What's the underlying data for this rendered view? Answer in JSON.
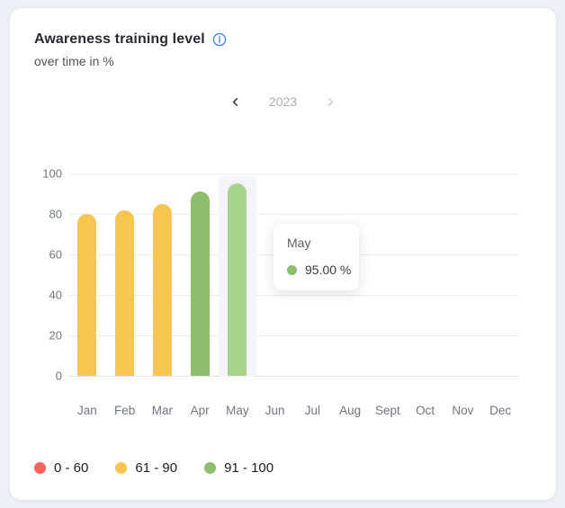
{
  "card": {
    "title": "Awareness training level",
    "subtitle": "over time in %"
  },
  "year_nav": {
    "year": "2023",
    "prev_enabled": true,
    "next_enabled": false
  },
  "chart_data": {
    "type": "bar",
    "title": "Awareness training level",
    "subtitle": "over time in %",
    "categories": [
      "Jan",
      "Feb",
      "Mar",
      "Apr",
      "May",
      "Jun",
      "Jul",
      "Aug",
      "Sept",
      "Oct",
      "Nov",
      "Dec"
    ],
    "values": [
      80,
      82,
      85,
      91,
      95,
      null,
      null,
      null,
      null,
      null,
      null,
      null
    ],
    "xlabel": "",
    "ylabel": "",
    "ylim": [
      0,
      100
    ],
    "yticks": [
      0,
      20,
      40,
      60,
      80,
      100
    ],
    "grid": true,
    "legend_position": "bottom-left",
    "hovered_index": 4,
    "tooltip": {
      "month": "May",
      "value": "95.00 %"
    },
    "color_rules": [
      {
        "range_min": 0,
        "range_max": 60,
        "color": "#F4655F"
      },
      {
        "range_min": 61,
        "range_max": 90,
        "color": "#F7C64E"
      },
      {
        "range_min": 91,
        "range_max": 100,
        "color": "#8CBE6E"
      }
    ],
    "hover_bar_color": "#A8D38D",
    "hover_band_color": "#F3F5FA"
  },
  "legend": {
    "items": [
      {
        "label": "0 - 60",
        "color": "#F4655F"
      },
      {
        "label": "61 - 90",
        "color": "#F7C64E"
      },
      {
        "label": "91 - 100",
        "color": "#8CBE6E"
      }
    ]
  },
  "colors": {
    "info_icon_blue": "#4285F4",
    "page_background": "#EDF0F6",
    "card_background": "#FFFFFF",
    "gridline": "#ECEDF1",
    "axis_text": "#6F7580",
    "nav_chevron_enabled": "#3E4450",
    "nav_chevron_disabled": "#CBD0DA",
    "tooltip_dot_green": "#8CBE6E"
  }
}
